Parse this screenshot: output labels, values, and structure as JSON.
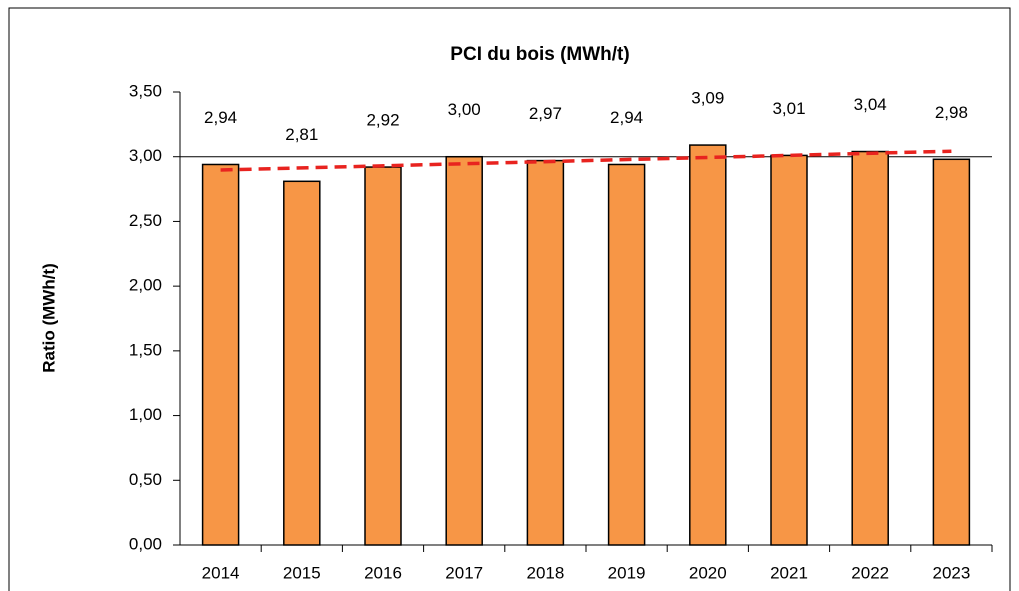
{
  "chart_data": {
    "type": "bar",
    "title": "PCI du bois (MWh/t)",
    "y_label": "Ratio (MWh/t)",
    "categories": [
      "2014",
      "2015",
      "2016",
      "2017",
      "2018",
      "2019",
      "2020",
      "2021",
      "2022",
      "2023"
    ],
    "values": [
      2.94,
      2.81,
      2.92,
      3.0,
      2.97,
      2.94,
      3.09,
      3.01,
      3.04,
      2.98
    ],
    "value_labels": [
      "2,94",
      "2,81",
      "2,92",
      "3,00",
      "2,97",
      "2,94",
      "3,09",
      "3,01",
      "3,04",
      "2,98"
    ],
    "color": "#f79646",
    "ylim": [
      0,
      3.5
    ],
    "yticks": [
      {
        "value": 0,
        "label": "0,00"
      },
      {
        "value": 0.5,
        "label": "0,50"
      },
      {
        "value": 1,
        "label": "1,00"
      },
      {
        "value": 1.5,
        "label": "1,50"
      },
      {
        "value": 2,
        "label": "2,00"
      },
      {
        "value": 2.5,
        "label": "2,50"
      },
      {
        "value": 3,
        "label": "3,00"
      },
      {
        "value": 3.5,
        "label": "3,50"
      }
    ],
    "grid_values": [
      3
    ],
    "trendline": {
      "kind": "linear",
      "color": "#e8231f"
    }
  }
}
